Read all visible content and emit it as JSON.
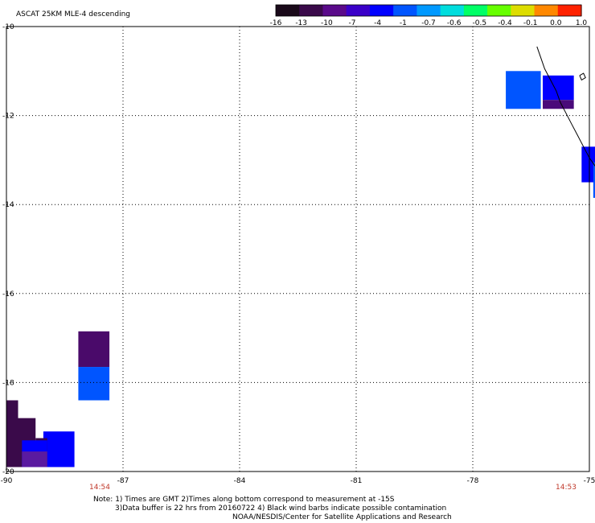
{
  "title": "ASCAT 25KM MLE-4 descending",
  "colorbar": {
    "labels": [
      "-16",
      "-13",
      "-10",
      "-7",
      "-4",
      "-1",
      "-0.7",
      "-0.6",
      "-0.5",
      "-0.4",
      "-0.1",
      "0.0",
      "1.0"
    ],
    "colors": [
      "#1a0a1a",
      "#3a0a4a",
      "#5a0a8a",
      "#3a00c8",
      "#0000ff",
      "#0055ff",
      "#0099ff",
      "#00dddd",
      "#00ff66",
      "#66ff00",
      "#dddd00",
      "#ff8800",
      "#ff2200"
    ]
  },
  "map": {
    "lon_range": [
      -90,
      -75
    ],
    "lat_range": [
      -20,
      -10
    ],
    "lon_ticks": [
      "-90",
      "-87",
      "-84",
      "-81",
      "-78",
      "-75"
    ],
    "lon_values": [
      -90,
      -87,
      -84,
      -81,
      -78,
      -75
    ],
    "lat_ticks": [
      "-10",
      "-12",
      "-14",
      "-16",
      "-18",
      "-20"
    ],
    "lat_values": [
      -10,
      -12,
      -14,
      -16,
      -18,
      -20
    ],
    "grid": true,
    "time_labels": [
      {
        "text": "14:54",
        "lon": -87.6
      },
      {
        "text": "14:53",
        "lon": -75.6
      }
    ],
    "cells": [
      {
        "lon1": -77.15,
        "lon2": -76.25,
        "lat1": -11.85,
        "lat2": -11.0,
        "color": "#0055ff"
      },
      {
        "lon1": -76.2,
        "lon2": -75.4,
        "lat1": -11.65,
        "lat2": -11.1,
        "color": "#0000ff"
      },
      {
        "lon1": -76.2,
        "lon2": -75.4,
        "lat1": -11.85,
        "lat2": -11.65,
        "color": "#4a0a7a"
      },
      {
        "lon1": -75.2,
        "lon2": -74.4,
        "lat1": -13.5,
        "lat2": -12.7,
        "color": "#0000ff"
      },
      {
        "lon1": -74.9,
        "lon2": -74.1,
        "lat1": -13.85,
        "lat2": -13.05,
        "color": "#0055ff"
      },
      {
        "lon1": -88.15,
        "lon2": -87.35,
        "lat1": -17.65,
        "lat2": -16.85,
        "color": "#4a0a6a"
      },
      {
        "lon1": -88.15,
        "lon2": -87.35,
        "lat1": -18.4,
        "lat2": -17.65,
        "color": "#0055ff"
      },
      {
        "lon1": -89.05,
        "lon2": -88.25,
        "lat1": -19.9,
        "lat2": -19.1,
        "color": "#0000ff"
      },
      {
        "lon1": -90.0,
        "lon2": -89.7,
        "lat1": -19.9,
        "lat2": -18.4,
        "color": "#3a0a4a"
      },
      {
        "lon1": -89.7,
        "lon2": -89.25,
        "lat1": -19.9,
        "lat2": -18.8,
        "color": "#3a0a4a"
      },
      {
        "lon1": -89.25,
        "lon2": -88.95,
        "lat1": -19.9,
        "lat2": -19.25,
        "color": "#3a0a4a"
      },
      {
        "lon1": -89.6,
        "lon2": -88.95,
        "lat1": -19.9,
        "lat2": -19.3,
        "color": "#0000ff"
      },
      {
        "lon1": -89.6,
        "lon2": -88.95,
        "lat1": -19.9,
        "lat2": -19.55,
        "color": "#5a1aa0"
      }
    ],
    "coast": [
      [
        -76.35,
        -10.45
      ],
      [
        -76.25,
        -10.7
      ],
      [
        -76.15,
        -10.95
      ],
      [
        -76.0,
        -11.2
      ],
      [
        -75.85,
        -11.45
      ],
      [
        -75.75,
        -11.7
      ],
      [
        -75.6,
        -11.95
      ],
      [
        -75.45,
        -12.2
      ],
      [
        -75.3,
        -12.45
      ],
      [
        -75.15,
        -12.7
      ],
      [
        -75.0,
        -12.95
      ],
      [
        -74.8,
        -13.2
      ],
      [
        -74.7,
        -13.45
      ],
      [
        -74.6,
        -13.7
      ],
      [
        -74.5,
        -13.95
      ],
      [
        -74.35,
        -14.2
      ],
      [
        -74.2,
        -14.45
      ],
      [
        -74.0,
        -14.7
      ],
      [
        -73.75,
        -14.95
      ],
      [
        -73.55,
        -15.2
      ],
      [
        -73.3,
        -15.45
      ],
      [
        -73.1,
        -15.6
      ],
      [
        -72.95,
        -15.65
      ]
    ],
    "island": [
      [
        -75.25,
        -11.1
      ],
      [
        -75.15,
        -11.05
      ],
      [
        -75.1,
        -11.15
      ],
      [
        -75.2,
        -11.2
      ],
      [
        -75.25,
        -11.1
      ]
    ]
  },
  "notes": {
    "line1": "Note: 1) Times are GMT 2)Times along bottom correspond to measurement at -15S",
    "line2": "3)Data buffer is 22 hrs from 20160722 4) Black wind barbs indicate possible contamination",
    "line3": "NOAA/NESDIS/Center for Satellite Applications and Research"
  }
}
